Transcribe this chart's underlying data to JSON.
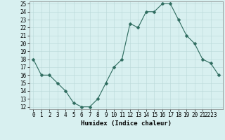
{
  "x": [
    0,
    1,
    2,
    3,
    4,
    5,
    6,
    7,
    8,
    9,
    10,
    11,
    12,
    13,
    14,
    15,
    16,
    17,
    18,
    19,
    20,
    21,
    22,
    23
  ],
  "y": [
    18,
    16,
    16,
    15,
    14,
    12.5,
    12,
    12,
    13,
    15,
    17,
    18,
    22.5,
    22,
    24,
    24,
    25,
    25,
    23,
    21,
    20,
    18,
    17.5,
    16
  ],
  "xlabel": "Humidex (Indice chaleur)",
  "ylim_min": 12,
  "ylim_max": 25,
  "xlim_min": -0.5,
  "xlim_max": 23.5,
  "line_color": "#2d6b5e",
  "marker_size": 2.5,
  "bg_color": "#d8f0f0",
  "grid_color": "#b8d8d8",
  "yticks": [
    12,
    13,
    14,
    15,
    16,
    17,
    18,
    19,
    20,
    21,
    22,
    23,
    24,
    25
  ],
  "xticks": [
    0,
    1,
    2,
    3,
    4,
    5,
    6,
    7,
    8,
    9,
    10,
    11,
    12,
    13,
    14,
    15,
    16,
    17,
    18,
    19,
    20,
    21,
    22
  ],
  "xtick_labels": [
    "0",
    "1",
    "2",
    "3",
    "4",
    "5",
    "6",
    "7",
    "8",
    "9",
    "10",
    "11",
    "12",
    "13",
    "14",
    "15",
    "16",
    "17",
    "18",
    "19",
    "20",
    "21",
    "2223"
  ],
  "tick_fontsize": 5.5,
  "label_fontsize": 6.5
}
